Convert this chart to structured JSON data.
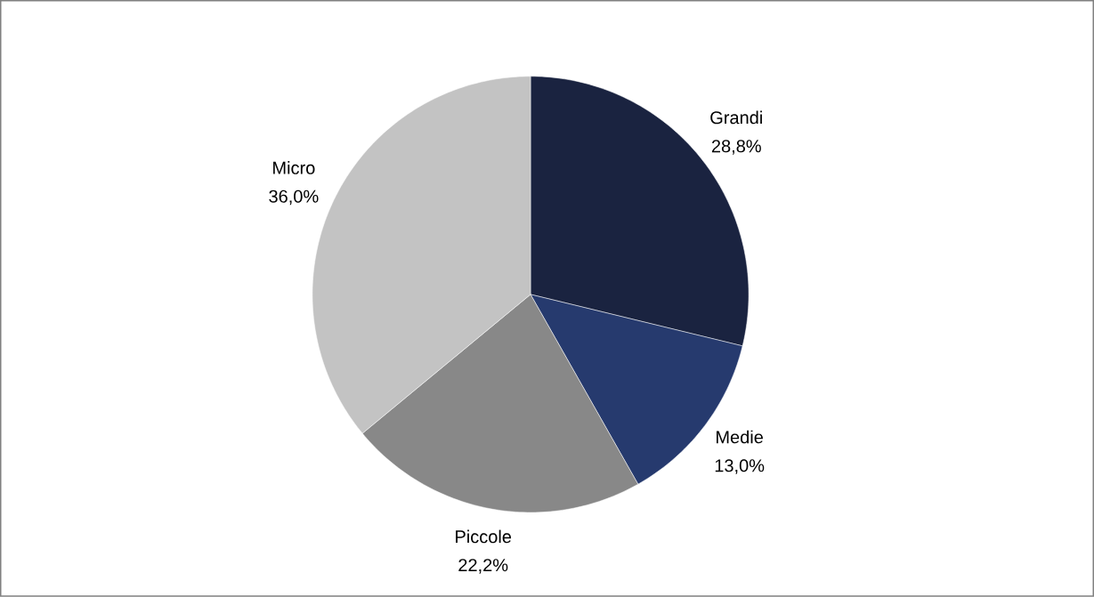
{
  "chart_data": {
    "type": "pie",
    "categories": [
      "Grandi",
      "Medie",
      "Piccole",
      "Micro"
    ],
    "values": [
      28.8,
      13.0,
      22.2,
      36.0
    ],
    "colors": [
      "#1a2340",
      "#263a6e",
      "#888888",
      "#c3c3c3"
    ],
    "value_labels": [
      "28,8%",
      "13,0%",
      "22,2%",
      "36,0%"
    ]
  }
}
